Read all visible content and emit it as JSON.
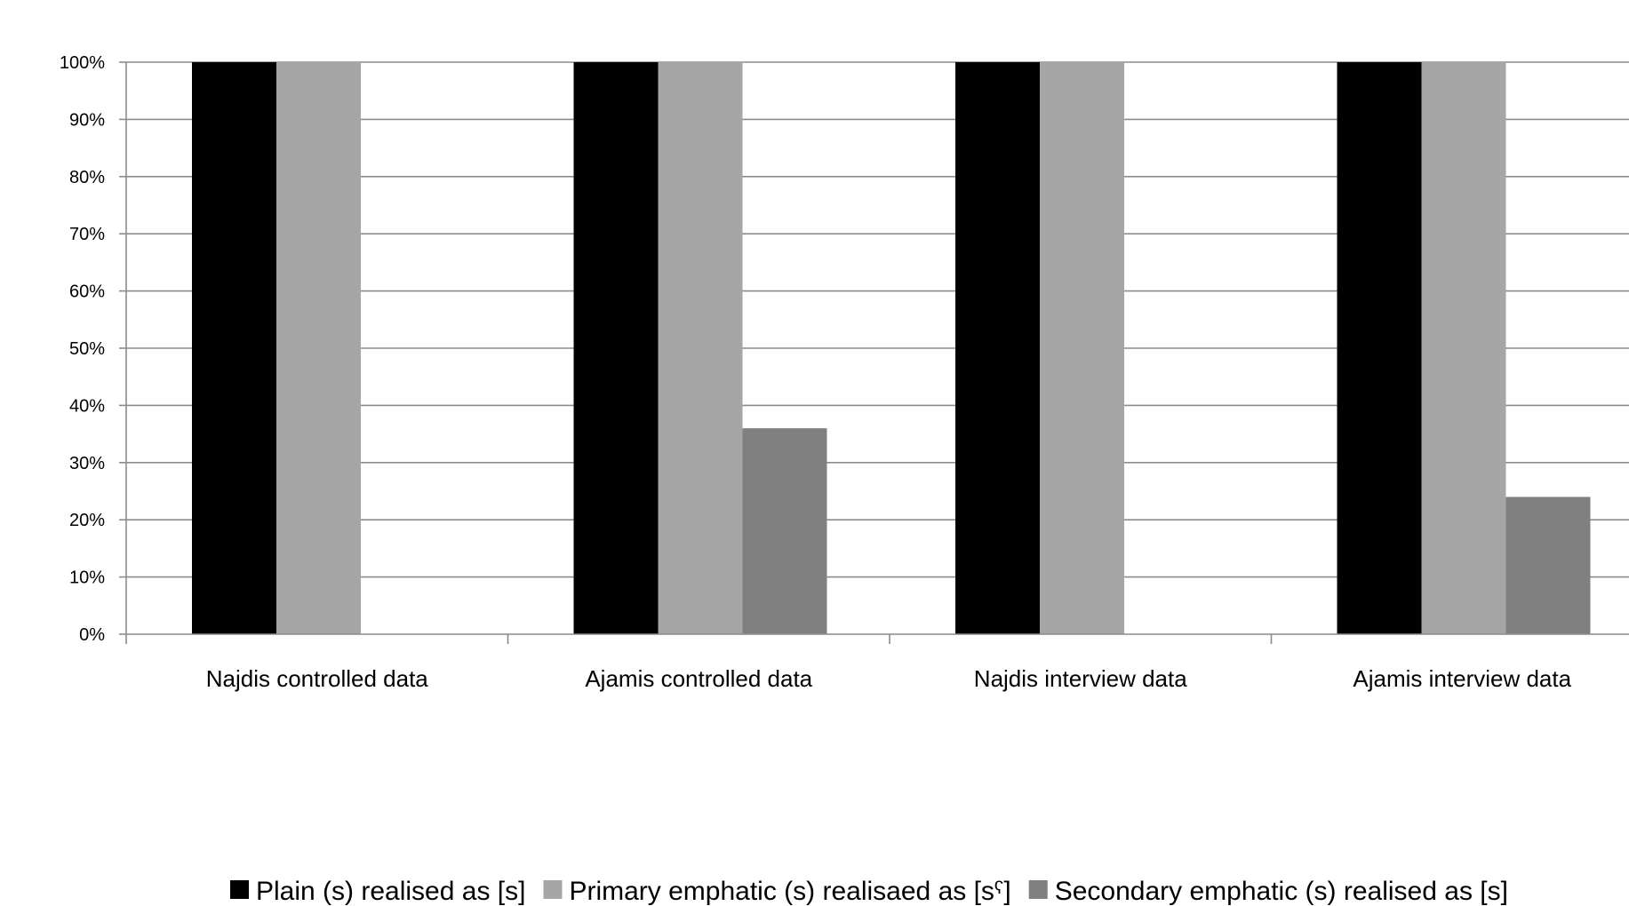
{
  "chart_data": {
    "type": "bar",
    "categories": [
      "Najdis controlled data",
      "Ajamis controlled data",
      "Najdis interview data",
      "Ajamis interview data"
    ],
    "series": [
      {
        "name": "Plain (s) realised as [s]",
        "color": "#000000",
        "values": [
          100,
          100,
          100,
          100
        ]
      },
      {
        "name": "Primary emphatic (s) realisaed as [sˤ]",
        "color": "#a6a6a6",
        "values": [
          100,
          100,
          100,
          100
        ]
      },
      {
        "name": "Secondary emphatic (s) realised as [s]",
        "color": "#808080",
        "values": [
          0,
          36,
          0,
          24
        ]
      }
    ],
    "ylim": [
      0,
      100
    ],
    "yticks": [
      "0%",
      "10%",
      "20%",
      "30%",
      "40%",
      "50%",
      "60%",
      "70%",
      "80%",
      "90%",
      "100%"
    ],
    "y_unit": "%",
    "grid": true,
    "legend_position": "bottom",
    "title": "",
    "xlabel": "",
    "ylabel": ""
  }
}
